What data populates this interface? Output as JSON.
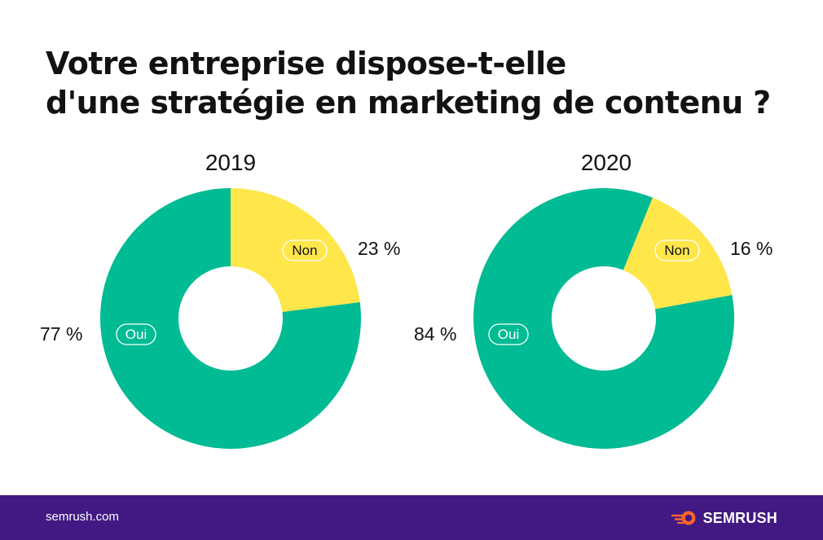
{
  "title": {
    "line1": "Votre entreprise dispose-t-elle",
    "line2": "d'une stratégie en marketing de contenu ?"
  },
  "colors": {
    "oui": "#00BB93",
    "non": "#FFE64B",
    "footer_bg": "#421983",
    "brand_accent": "#FF642D"
  },
  "chart_data": [
    {
      "type": "pie",
      "title": "2019",
      "donut": true,
      "slices": [
        {
          "label": "Non",
          "value": 23,
          "value_label": "23 %"
        },
        {
          "label": "Oui",
          "value": 77,
          "value_label": "77 %"
        }
      ]
    },
    {
      "type": "pie",
      "title": "2020",
      "donut": true,
      "slices": [
        {
          "label": "Non",
          "value": 16,
          "value_label": "16 %"
        },
        {
          "label": "Oui",
          "value": 84,
          "value_label": "84 %"
        }
      ]
    }
  ],
  "footer": {
    "url": "semrush.com",
    "brand": "SEMRUSH",
    "logo_icon": "semrush-fireball-icon"
  }
}
